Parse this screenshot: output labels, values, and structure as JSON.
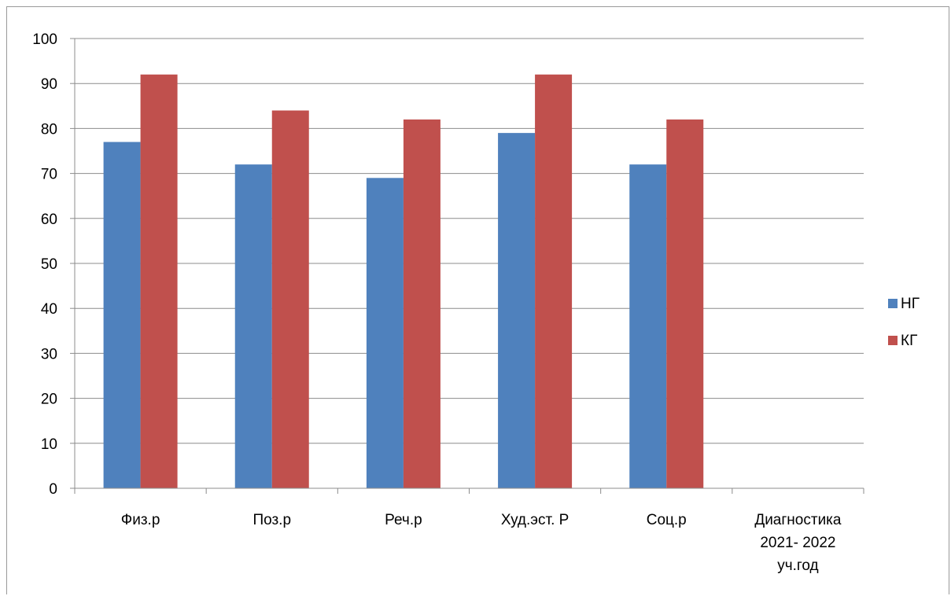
{
  "chart_data": {
    "type": "bar",
    "categories": [
      [
        "Физ.р"
      ],
      [
        "Поз.р"
      ],
      [
        "Реч.р"
      ],
      [
        "Худ.эст. Р"
      ],
      [
        "Соц.р"
      ],
      [
        "Диагностика",
        "2021- 2022",
        "уч.год"
      ]
    ],
    "series": [
      {
        "name": "НГ",
        "color": "#4F81BD",
        "values": [
          77,
          72,
          69,
          79,
          72,
          null
        ]
      },
      {
        "name": "КГ",
        "color": "#C0504D",
        "values": [
          92,
          84,
          82,
          92,
          82,
          null
        ]
      }
    ],
    "yticks": [
      "0",
      "10",
      "20",
      "30",
      "40",
      "50",
      "60",
      "70",
      "80",
      "90",
      "100"
    ],
    "ylim": [
      0,
      100
    ],
    "grid": true,
    "legend_position": "right"
  }
}
